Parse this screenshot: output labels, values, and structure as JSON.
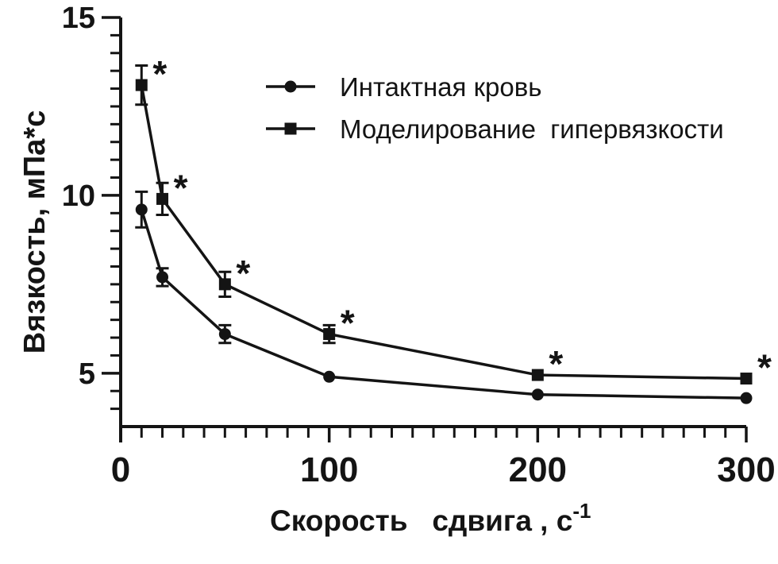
{
  "figure": {
    "background": "#ffffff",
    "ink": "#141414"
  },
  "chart_data": {
    "type": "line",
    "title": "",
    "ylabel": "Вязкость, мПа*с",
    "xlabel_main": "Скорость   сдвига , с",
    "xlabel_sup": "-1",
    "x": [
      10,
      20,
      50,
      100,
      200,
      300
    ],
    "xlim": [
      0,
      300
    ],
    "ylim": [
      3.5,
      15
    ],
    "x_major_ticks": [
      0,
      100,
      200,
      300
    ],
    "x_minor_step": 10,
    "y_major_ticks": [
      5,
      10,
      15
    ],
    "y_minor_step": 0.5,
    "y_minor_range": [
      4.0,
      14.5
    ],
    "grid": "off",
    "legend_position": "inside-top-right",
    "significance_symbol": "*",
    "series": [
      {
        "name": "Интактная кровь",
        "marker": "circle",
        "color": "#141414",
        "values": [
          9.6,
          7.7,
          6.1,
          4.9,
          4.4,
          4.3
        ],
        "errors": [
          0.5,
          0.25,
          0.25,
          0,
          0,
          0
        ],
        "significant": [
          false,
          false,
          false,
          false,
          false,
          false
        ]
      },
      {
        "name": "Моделирование  гипервязкости",
        "marker": "square",
        "color": "#141414",
        "values": [
          13.1,
          9.9,
          7.5,
          6.1,
          4.95,
          4.85
        ],
        "errors": [
          0.55,
          0.45,
          0.35,
          0.25,
          0,
          0
        ],
        "significant": [
          true,
          true,
          true,
          true,
          true,
          true
        ]
      }
    ]
  }
}
